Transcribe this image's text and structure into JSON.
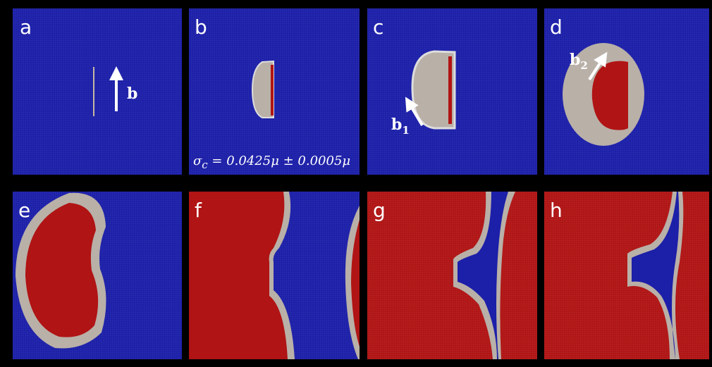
{
  "panels": [
    {
      "label": "a"
    },
    {
      "label": "b"
    },
    {
      "label": "c"
    },
    {
      "label": "d"
    },
    {
      "label": "e"
    },
    {
      "label": "f"
    },
    {
      "label": "g"
    },
    {
      "label": "h"
    }
  ],
  "annotations": {
    "burgers_vector": "b",
    "b1": {
      "text": "b",
      "subscript": "1"
    },
    "b2": {
      "text": "b",
      "subscript": "2"
    },
    "critical_stress": {
      "symbol": "σ",
      "subscript": "c",
      "expression": " = 0.0425μ ± 0.0005μ"
    }
  }
}
